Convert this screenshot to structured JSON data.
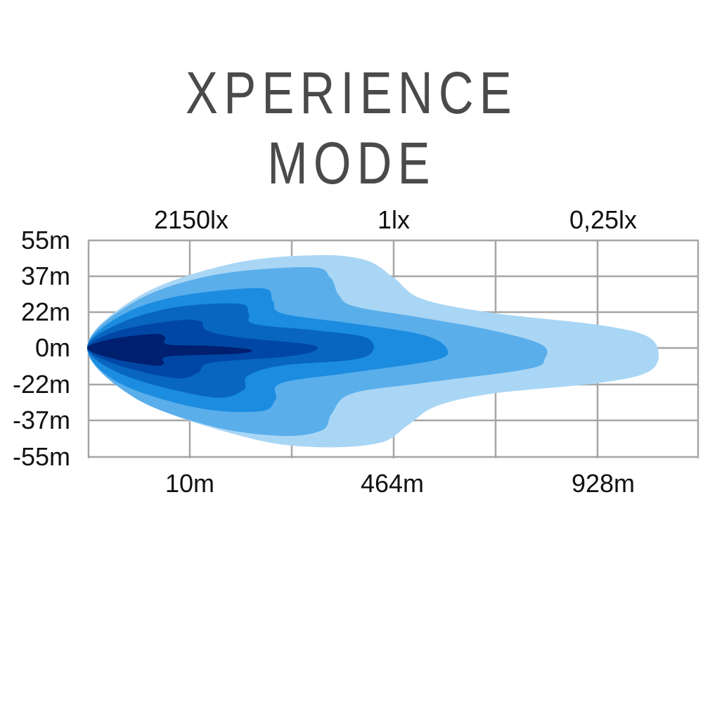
{
  "title": {
    "line1": "XPERIENCE",
    "line2": "MODE"
  },
  "chart_data": {
    "type": "area",
    "title": "XPERIENCE MODE",
    "top_labels": [
      "2150lx",
      "1lx",
      "0,25lx"
    ],
    "bottom_labels": [
      "10m",
      "464m",
      "928m"
    ],
    "y_tick_labels": [
      "55m",
      "37m",
      "22m",
      "0m",
      "-22m",
      "-37m",
      "-55m"
    ],
    "grid": true,
    "layer_colors": [
      "#a9d6f5",
      "#5aaeea",
      "#1b8ce0",
      "#0866c0",
      "#0047a5",
      "#001f6e"
    ],
    "grid_color": "#a6a6a6"
  }
}
